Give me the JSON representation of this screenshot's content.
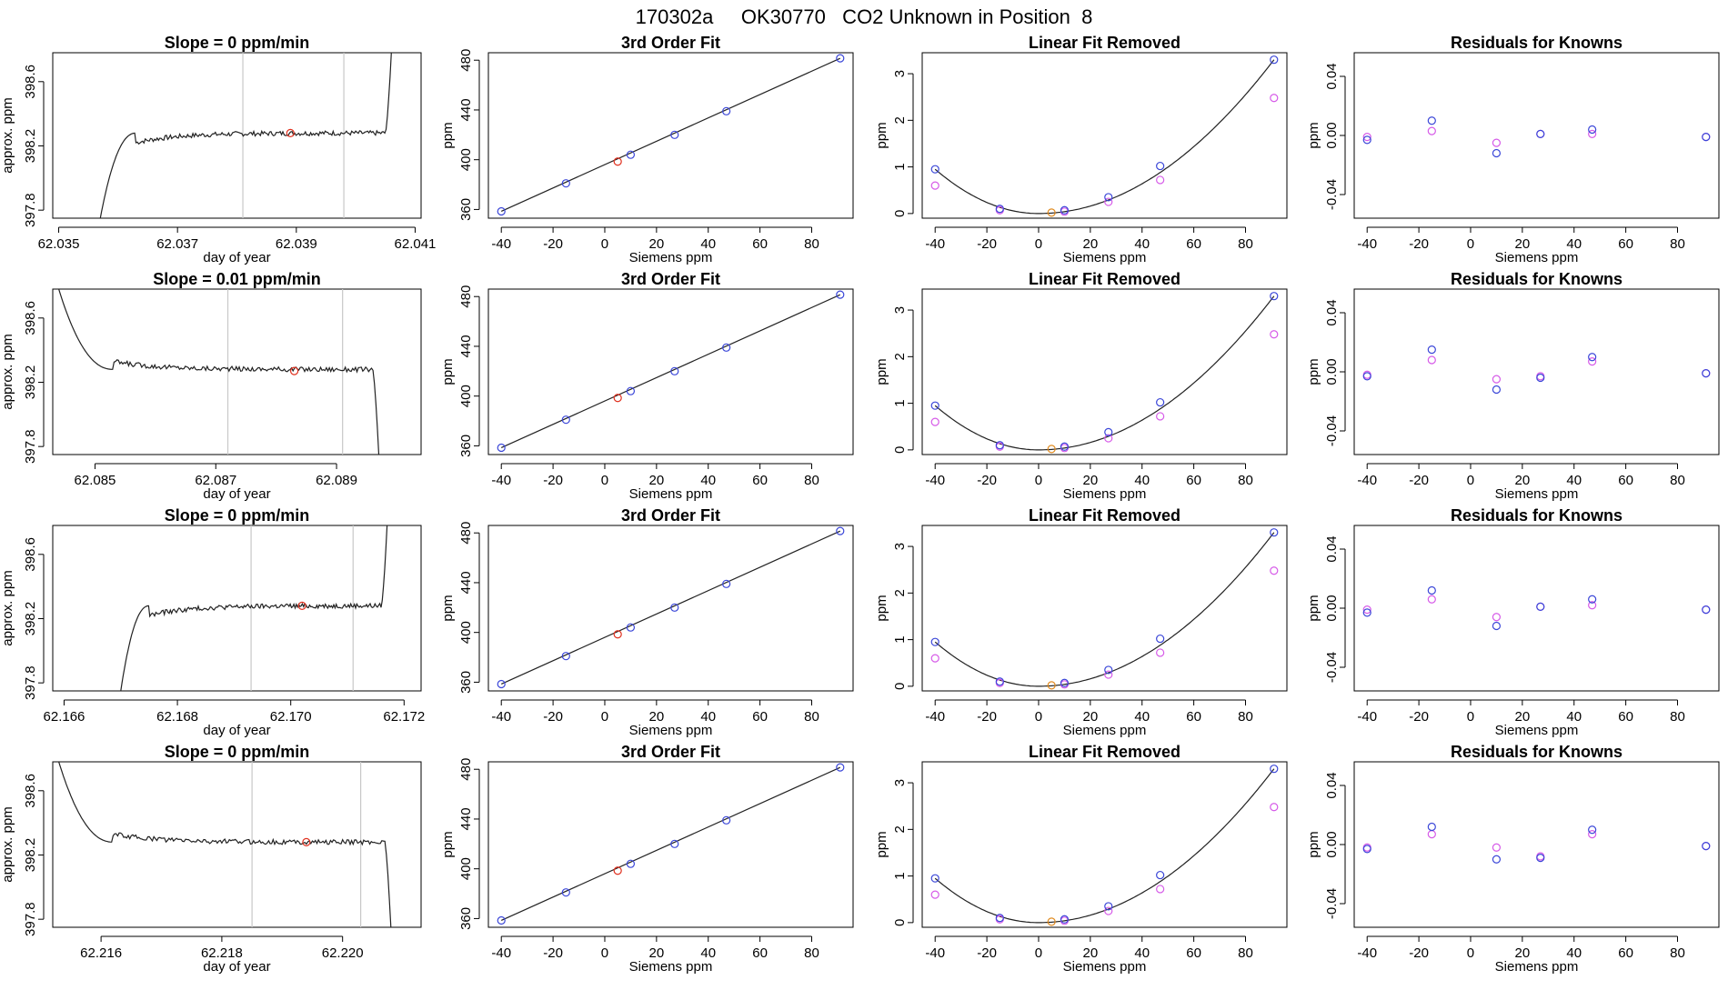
{
  "page": {
    "title": "170302a     OK30770   CO2 Unknown in Position  8"
  },
  "chart_data": [
    {
      "type": "line",
      "title": "Slope =  0  ppm/min",
      "xlabel": "day of year",
      "ylabel": "approx. ppm",
      "xlim": [
        62.0349,
        62.0411
      ],
      "ylim": [
        397.75,
        398.78
      ],
      "xticks": [
        62.035,
        62.037,
        62.039,
        62.041
      ],
      "yticks": [
        397.8,
        398.2,
        398.6
      ],
      "vlines": [
        62.0381,
        62.0398
      ],
      "profile": "rise",
      "trace": {
        "start": 62.0357,
        "plateau_start": 62.0363,
        "plateau_end": 62.0405,
        "end": 62.0406,
        "plateau_value": 398.28,
        "initial_value": 397.75,
        "final_value": 398.78
      },
      "marker": {
        "x": 62.0389,
        "y": 398.28,
        "color": "#e0301e"
      },
      "grid": false
    },
    {
      "type": "line",
      "title": "3rd Order Fit",
      "xlabel": "Siemens ppm",
      "ylabel": "ppm",
      "xlim": [
        -45,
        96
      ],
      "ylim": [
        353,
        486
      ],
      "xticks": [
        -40,
        -20,
        0,
        20,
        40,
        60,
        80
      ],
      "yticks": [
        360,
        400,
        440,
        480
      ],
      "fit_line": {
        "x": [
          -40,
          91
        ],
        "y": [
          358.5,
          481.5
        ]
      },
      "points": {
        "x": [
          -40,
          -15,
          10,
          27,
          47,
          91
        ],
        "y": [
          358.5,
          381,
          404,
          420,
          439,
          481.5
        ],
        "color": "#3a46d8"
      },
      "unknown": {
        "x": 5,
        "y": 398.5,
        "color": "#e0301e"
      },
      "grid": false
    },
    {
      "type": "scatter",
      "title": "Linear Fit Removed",
      "xlabel": "Siemens ppm",
      "ylabel": "ppm",
      "xlim": [
        -45,
        96
      ],
      "ylim": [
        -0.1,
        3.45
      ],
      "xticks": [
        -40,
        -20,
        0,
        20,
        40,
        60,
        80
      ],
      "yticks": [
        0.0,
        1.0,
        2.0,
        3.0
      ],
      "curve": {
        "vertex_x": 0,
        "vertex_y": 0.0,
        "left_x": -40,
        "left_y": 0.95,
        "right_x": 91,
        "right_y": 3.3
      },
      "series": [
        {
          "name": "",
          "x": [
            -40,
            -15,
            10,
            27,
            47,
            91
          ],
          "y": [
            0.95,
            0.1,
            0.07,
            0.35,
            1.02,
            3.3
          ],
          "color": "#3a46d8"
        },
        {
          "name": "",
          "x": [
            -40,
            -15,
            10,
            27,
            47,
            91
          ],
          "y": [
            0.6,
            0.07,
            0.04,
            0.25,
            0.72,
            2.48
          ],
          "color": "#d65ae8"
        }
      ],
      "unknown": {
        "x": 5,
        "y": 0.02,
        "color": "#e08a1e"
      },
      "grid": false
    },
    {
      "type": "scatter",
      "title": "Residuals for Knowns",
      "xlabel": "Siemens ppm",
      "ylabel": "ppm",
      "xlim": [
        -45,
        96
      ],
      "ylim": [
        -0.056,
        0.056
      ],
      "xticks": [
        -40,
        -20,
        0,
        20,
        40,
        60,
        80
      ],
      "yticks": [
        -0.04,
        0.0,
        0.04
      ],
      "series": [
        {
          "name": "",
          "x": [
            -40,
            -15,
            10,
            27,
            47,
            91
          ],
          "y": [
            -0.003,
            0.01,
            -0.012,
            0.001,
            0.004,
            -0.001
          ],
          "color": "#3a46d8"
        },
        {
          "name": "",
          "x": [
            -40,
            -15,
            10,
            27,
            47,
            91
          ],
          "y": [
            -0.001,
            0.003,
            -0.005,
            0.001,
            0.001,
            -0.001
          ],
          "color": "#d65ae8"
        }
      ],
      "grid": false
    },
    {
      "type": "line",
      "title": "Slope =  0.01  ppm/min",
      "xlabel": "day of year",
      "ylabel": "approx. ppm",
      "xlim": [
        62.0843,
        62.0904
      ],
      "ylim": [
        397.75,
        398.78
      ],
      "xticks": [
        62.085,
        62.087,
        62.089
      ],
      "yticks": [
        397.8,
        398.2,
        398.6
      ],
      "vlines": [
        62.0872,
        62.0891
      ],
      "profile": "fall",
      "trace": {
        "start": 62.0844,
        "plateau_start": 62.0853,
        "plateau_end": 62.0896,
        "end": 62.0897,
        "plateau_value": 398.28,
        "initial_value": 398.78,
        "final_value": 397.75
      },
      "marker": {
        "x": 62.0883,
        "y": 398.27,
        "color": "#e0301e"
      },
      "grid": false
    },
    {
      "type": "line",
      "title": "3rd Order Fit",
      "xlabel": "Siemens ppm",
      "ylabel": "ppm",
      "xlim": [
        -45,
        96
      ],
      "ylim": [
        353,
        486
      ],
      "xticks": [
        -40,
        -20,
        0,
        20,
        40,
        60,
        80
      ],
      "yticks": [
        360,
        400,
        440,
        480
      ],
      "fit_line": {
        "x": [
          -40,
          91
        ],
        "y": [
          358.5,
          481.5
        ]
      },
      "points": {
        "x": [
          -40,
          -15,
          10,
          27,
          47,
          91
        ],
        "y": [
          358.5,
          381,
          404,
          420,
          439,
          481.5
        ],
        "color": "#3a46d8"
      },
      "unknown": {
        "x": 5,
        "y": 398.5,
        "color": "#e0301e"
      },
      "grid": false
    },
    {
      "type": "scatter",
      "title": "Linear Fit Removed",
      "xlabel": "Siemens ppm",
      "ylabel": "ppm",
      "xlim": [
        -45,
        96
      ],
      "ylim": [
        -0.1,
        3.45
      ],
      "xticks": [
        -40,
        -20,
        0,
        20,
        40,
        60,
        80
      ],
      "yticks": [
        0.0,
        1.0,
        2.0,
        3.0
      ],
      "curve": {
        "vertex_x": 0,
        "vertex_y": 0.0,
        "left_x": -40,
        "left_y": 0.95,
        "right_x": 91,
        "right_y": 3.3
      },
      "series": [
        {
          "name": "",
          "x": [
            -40,
            -15,
            10,
            27,
            47,
            91
          ],
          "y": [
            0.95,
            0.1,
            0.07,
            0.38,
            1.02,
            3.3
          ],
          "color": "#3a46d8"
        },
        {
          "name": "",
          "x": [
            -40,
            -15,
            10,
            27,
            47,
            91
          ],
          "y": [
            0.6,
            0.07,
            0.04,
            0.25,
            0.72,
            2.48
          ],
          "color": "#d65ae8"
        }
      ],
      "unknown": {
        "x": 5,
        "y": 0.02,
        "color": "#e08a1e"
      },
      "grid": false
    },
    {
      "type": "scatter",
      "title": "Residuals for Knowns",
      "xlabel": "Siemens ppm",
      "ylabel": "ppm",
      "xlim": [
        -45,
        96
      ],
      "ylim": [
        -0.056,
        0.056
      ],
      "xticks": [
        -40,
        -20,
        0,
        20,
        40,
        60,
        80
      ],
      "yticks": [
        -0.04,
        0.0,
        0.04
      ],
      "series": [
        {
          "name": "",
          "x": [
            -40,
            -15,
            10,
            27,
            47,
            91
          ],
          "y": [
            -0.003,
            0.015,
            -0.012,
            -0.004,
            0.01,
            -0.001
          ],
          "color": "#3a46d8"
        },
        {
          "name": "",
          "x": [
            -40,
            -15,
            10,
            27,
            47,
            91
          ],
          "y": [
            -0.002,
            0.008,
            -0.005,
            -0.003,
            0.007,
            -0.001
          ],
          "color": "#d65ae8"
        }
      ],
      "grid": false
    },
    {
      "type": "line",
      "title": "Slope =  0  ppm/min",
      "xlabel": "day of year",
      "ylabel": "approx. ppm",
      "xlim": [
        62.1658,
        62.1723
      ],
      "ylim": [
        397.75,
        398.78
      ],
      "xticks": [
        62.166,
        62.168,
        62.17,
        62.172
      ],
      "yticks": [
        397.8,
        398.2,
        398.6
      ],
      "vlines": [
        62.1693,
        62.1711
      ],
      "profile": "rise",
      "trace": {
        "start": 62.167,
        "plateau_start": 62.1675,
        "plateau_end": 62.1716,
        "end": 62.1717,
        "plateau_value": 398.28,
        "initial_value": 397.75,
        "final_value": 398.78
      },
      "marker": {
        "x": 62.1702,
        "y": 398.28,
        "color": "#e0301e"
      },
      "grid": false
    },
    {
      "type": "line",
      "title": "3rd Order Fit",
      "xlabel": "Siemens ppm",
      "ylabel": "ppm",
      "xlim": [
        -45,
        96
      ],
      "ylim": [
        353,
        486
      ],
      "xticks": [
        -40,
        -20,
        0,
        20,
        40,
        60,
        80
      ],
      "yticks": [
        360,
        400,
        440,
        480
      ],
      "fit_line": {
        "x": [
          -40,
          91
        ],
        "y": [
          358.5,
          481.5
        ]
      },
      "points": {
        "x": [
          -40,
          -15,
          10,
          27,
          47,
          91
        ],
        "y": [
          358.5,
          381,
          404,
          420,
          439,
          481.5
        ],
        "color": "#3a46d8"
      },
      "unknown": {
        "x": 5,
        "y": 398.5,
        "color": "#e0301e"
      },
      "grid": false
    },
    {
      "type": "scatter",
      "title": "Linear Fit Removed",
      "xlabel": "Siemens ppm",
      "ylabel": "ppm",
      "xlim": [
        -45,
        96
      ],
      "ylim": [
        -0.1,
        3.45
      ],
      "xticks": [
        -40,
        -20,
        0,
        20,
        40,
        60,
        80
      ],
      "yticks": [
        0.0,
        1.0,
        2.0,
        3.0
      ],
      "curve": {
        "vertex_x": 0,
        "vertex_y": 0.0,
        "left_x": -40,
        "left_y": 0.95,
        "right_x": 91,
        "right_y": 3.3
      },
      "series": [
        {
          "name": "",
          "x": [
            -40,
            -15,
            10,
            27,
            47,
            91
          ],
          "y": [
            0.95,
            0.1,
            0.07,
            0.35,
            1.02,
            3.3
          ],
          "color": "#3a46d8"
        },
        {
          "name": "",
          "x": [
            -40,
            -15,
            10,
            27,
            47,
            91
          ],
          "y": [
            0.6,
            0.07,
            0.04,
            0.25,
            0.72,
            2.48
          ],
          "color": "#d65ae8"
        }
      ],
      "unknown": {
        "x": 5,
        "y": 0.02,
        "color": "#e08a1e"
      },
      "grid": false
    },
    {
      "type": "scatter",
      "title": "Residuals for Knowns",
      "xlabel": "Siemens ppm",
      "ylabel": "ppm",
      "xlim": [
        -45,
        96
      ],
      "ylim": [
        -0.056,
        0.056
      ],
      "xticks": [
        -40,
        -20,
        0,
        20,
        40,
        60,
        80
      ],
      "yticks": [
        -0.04,
        0.0,
        0.04
      ],
      "series": [
        {
          "name": "",
          "x": [
            -40,
            -15,
            10,
            27,
            47,
            91
          ],
          "y": [
            -0.003,
            0.012,
            -0.012,
            0.001,
            0.006,
            -0.001
          ],
          "color": "#3a46d8"
        },
        {
          "name": "",
          "x": [
            -40,
            -15,
            10,
            27,
            47,
            91
          ],
          "y": [
            -0.001,
            0.006,
            -0.006,
            0.001,
            0.002,
            -0.001
          ],
          "color": "#d65ae8"
        }
      ],
      "grid": false
    },
    {
      "type": "line",
      "title": "Slope =  0  ppm/min",
      "xlabel": "day of year",
      "ylabel": "approx. ppm",
      "xlim": [
        62.2152,
        62.2213
      ],
      "ylim": [
        397.75,
        398.78
      ],
      "xticks": [
        62.216,
        62.218,
        62.22
      ],
      "yticks": [
        397.8,
        398.2,
        398.6
      ],
      "vlines": [
        62.2185,
        62.2203
      ],
      "profile": "fall",
      "trace": {
        "start": 62.2153,
        "plateau_start": 62.2162,
        "plateau_end": 62.2207,
        "end": 62.2208,
        "plateau_value": 398.28,
        "initial_value": 398.78,
        "final_value": 397.75
      },
      "marker": {
        "x": 62.2194,
        "y": 398.28,
        "color": "#e0301e"
      },
      "grid": false
    },
    {
      "type": "line",
      "title": "3rd Order Fit",
      "xlabel": "Siemens ppm",
      "ylabel": "ppm",
      "xlim": [
        -45,
        96
      ],
      "ylim": [
        353,
        486
      ],
      "xticks": [
        -40,
        -20,
        0,
        20,
        40,
        60,
        80
      ],
      "yticks": [
        360,
        400,
        440,
        480
      ],
      "fit_line": {
        "x": [
          -40,
          91
        ],
        "y": [
          358.5,
          481.5
        ]
      },
      "points": {
        "x": [
          -40,
          -15,
          10,
          27,
          47,
          91
        ],
        "y": [
          358.5,
          381,
          404,
          420,
          439,
          481.5
        ],
        "color": "#3a46d8"
      },
      "unknown": {
        "x": 5,
        "y": 398.5,
        "color": "#e0301e"
      },
      "grid": false
    },
    {
      "type": "scatter",
      "title": "Linear Fit Removed",
      "xlabel": "Siemens ppm",
      "ylabel": "ppm",
      "xlim": [
        -45,
        96
      ],
      "ylim": [
        -0.1,
        3.45
      ],
      "xticks": [
        -40,
        -20,
        0,
        20,
        40,
        60,
        80
      ],
      "yticks": [
        0.0,
        1.0,
        2.0,
        3.0
      ],
      "curve": {
        "vertex_x": 0,
        "vertex_y": 0.0,
        "left_x": -40,
        "left_y": 0.95,
        "right_x": 91,
        "right_y": 3.3
      },
      "series": [
        {
          "name": "",
          "x": [
            -40,
            -15,
            10,
            27,
            47,
            91
          ],
          "y": [
            0.95,
            0.1,
            0.07,
            0.35,
            1.02,
            3.3
          ],
          "color": "#3a46d8"
        },
        {
          "name": "",
          "x": [
            -40,
            -15,
            10,
            27,
            47,
            91
          ],
          "y": [
            0.6,
            0.07,
            0.04,
            0.25,
            0.72,
            2.48
          ],
          "color": "#d65ae8"
        }
      ],
      "unknown": {
        "x": 5,
        "y": 0.02,
        "color": "#e08a1e"
      },
      "grid": false
    },
    {
      "type": "scatter",
      "title": "Residuals for Knowns",
      "xlabel": "Siemens ppm",
      "ylabel": "ppm",
      "xlim": [
        -45,
        96
      ],
      "ylim": [
        -0.056,
        0.056
      ],
      "xticks": [
        -40,
        -20,
        0,
        20,
        40,
        60,
        80
      ],
      "yticks": [
        -0.04,
        0.0,
        0.04
      ],
      "series": [
        {
          "name": "",
          "x": [
            -40,
            -15,
            10,
            27,
            47,
            91
          ],
          "y": [
            -0.003,
            0.012,
            -0.01,
            -0.009,
            0.01,
            -0.001
          ],
          "color": "#3a46d8"
        },
        {
          "name": "",
          "x": [
            -40,
            -15,
            10,
            27,
            47,
            91
          ],
          "y": [
            -0.002,
            0.007,
            -0.002,
            -0.008,
            0.007,
            -0.001
          ],
          "color": "#d65ae8"
        }
      ],
      "grid": false
    }
  ]
}
